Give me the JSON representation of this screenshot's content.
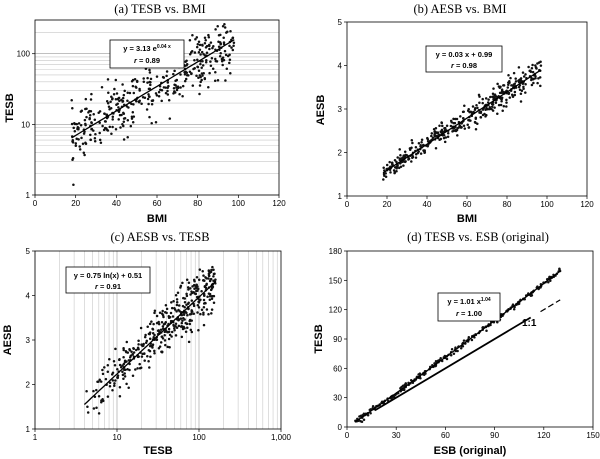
{
  "chart_data": [
    {
      "type": "scatter",
      "title": "(a)  TESB  vs.  BMI",
      "xlabel": "BMI",
      "ylabel": "TESB",
      "xlim": [
        0,
        120
      ],
      "ylim": [
        1,
        300
      ],
      "yscale": "log",
      "grid": "horizontal-minor",
      "xticks": [
        "0",
        "20",
        "40",
        "60",
        "80",
        "100",
        "120"
      ],
      "yticks": [
        "1",
        "10",
        "100"
      ],
      "x_range": [
        18,
        98
      ],
      "point_count": 420,
      "fit": {
        "form": "exponential",
        "a": 3.13,
        "b": 0.04
      },
      "equation": "y = 3.13 e",
      "equation_exp": "0.04 x",
      "r_label": "r",
      "r_value": " = 0.89"
    },
    {
      "type": "scatter",
      "title": "(b)  AESB  vs.  BMI",
      "xlabel": "BMI",
      "ylabel": "AESB",
      "xlim": [
        0,
        120
      ],
      "ylim": [
        1,
        5
      ],
      "grid": "none",
      "xticks": [
        "0",
        "20",
        "40",
        "60",
        "80",
        "100",
        "120"
      ],
      "yticks": [
        "1",
        "2",
        "3",
        "4",
        "5"
      ],
      "x_range": [
        18,
        97
      ],
      "point_count": 420,
      "fit": {
        "form": "linear",
        "slope": 0.03,
        "intercept": 0.99
      },
      "equation": "y = 0.03 x + 0.99",
      "r_label": "r",
      "r_value": " = 0.98"
    },
    {
      "type": "scatter",
      "title": "(c)  AESB  vs.  TESB",
      "xlabel": "TESB",
      "ylabel": "AESB",
      "xlim": [
        1,
        1000
      ],
      "xscale": "log",
      "ylim": [
        1,
        5
      ],
      "grid": "vertical-minor",
      "xticks": [
        "1",
        "10",
        "100",
        "1,000"
      ],
      "yticks": [
        "1",
        "2",
        "3",
        "4",
        "5"
      ],
      "x_range": [
        4,
        160
      ],
      "point_count": 420,
      "fit": {
        "form": "logarithmic",
        "a": 0.75,
        "b": 0.51
      },
      "equation": "y = 0.75 ln(x) + 0.51",
      "r_label": "r",
      "r_value": " = 0.91"
    },
    {
      "type": "scatter",
      "title": "(d)  TESB  vs.  ESB (original)",
      "xlabel": "ESB (original)",
      "ylabel": "TESB",
      "xlim": [
        0,
        150
      ],
      "ylim": [
        0,
        180
      ],
      "grid": "none",
      "xticks": [
        "0",
        "30",
        "60",
        "90",
        "120",
        "150"
      ],
      "yticks": [
        "0",
        "30",
        "60",
        "90",
        "120",
        "150",
        "180"
      ],
      "x_range": [
        5,
        130
      ],
      "point_count": 260,
      "fit": {
        "form": "power",
        "a": 1.01,
        "b": 1.04
      },
      "equation": "y = 1.01 x",
      "equation_exp": "1.04",
      "r_label": "r",
      "r_value": " = 1.00",
      "reference_line": {
        "label": "1:1",
        "from": [
          17,
          17
        ],
        "to": [
          130,
          130
        ]
      }
    }
  ]
}
